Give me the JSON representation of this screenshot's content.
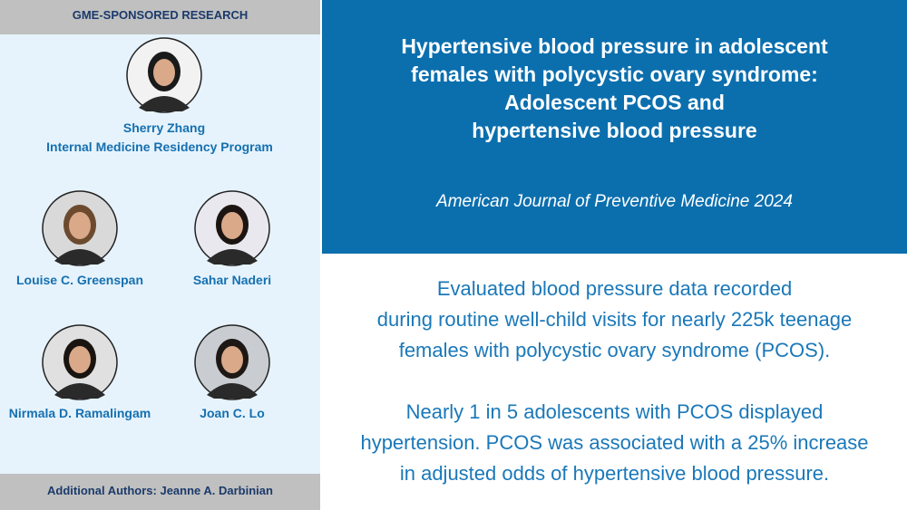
{
  "sidebar": {
    "header": "GME-SPONSORED RESEARCH",
    "authors": [
      {
        "name": "Sherry Zhang",
        "affiliation": "Internal Medicine Residency Program"
      },
      {
        "name": "Louise C. Greenspan"
      },
      {
        "name": "Sahar Naderi"
      },
      {
        "name": "Nirmala D. Ramalingam"
      },
      {
        "name": "Joan C. Lo"
      }
    ],
    "footer": "Additional Authors: Jeanne A. Darbinian"
  },
  "main": {
    "title_lines": [
      "Hypertensive blood pressure in adolescent",
      "females with polycystic ovary syndrome:",
      "Adolescent PCOS and",
      "hypertensive blood pressure"
    ],
    "journal": "American Journal of Preventive Medicine 2024",
    "summary": [
      [
        "Evaluated blood pressure data recorded",
        "during routine well-child visits for nearly 225k teenage",
        "females with polycystic ovary syndrome (PCOS)."
      ],
      [
        "Nearly 1 in 5 adolescents with PCOS displayed",
        "hypertension. PCOS was associated with a 25% increase",
        "in adjusted odds of hypertensive blood pressure."
      ]
    ]
  }
}
